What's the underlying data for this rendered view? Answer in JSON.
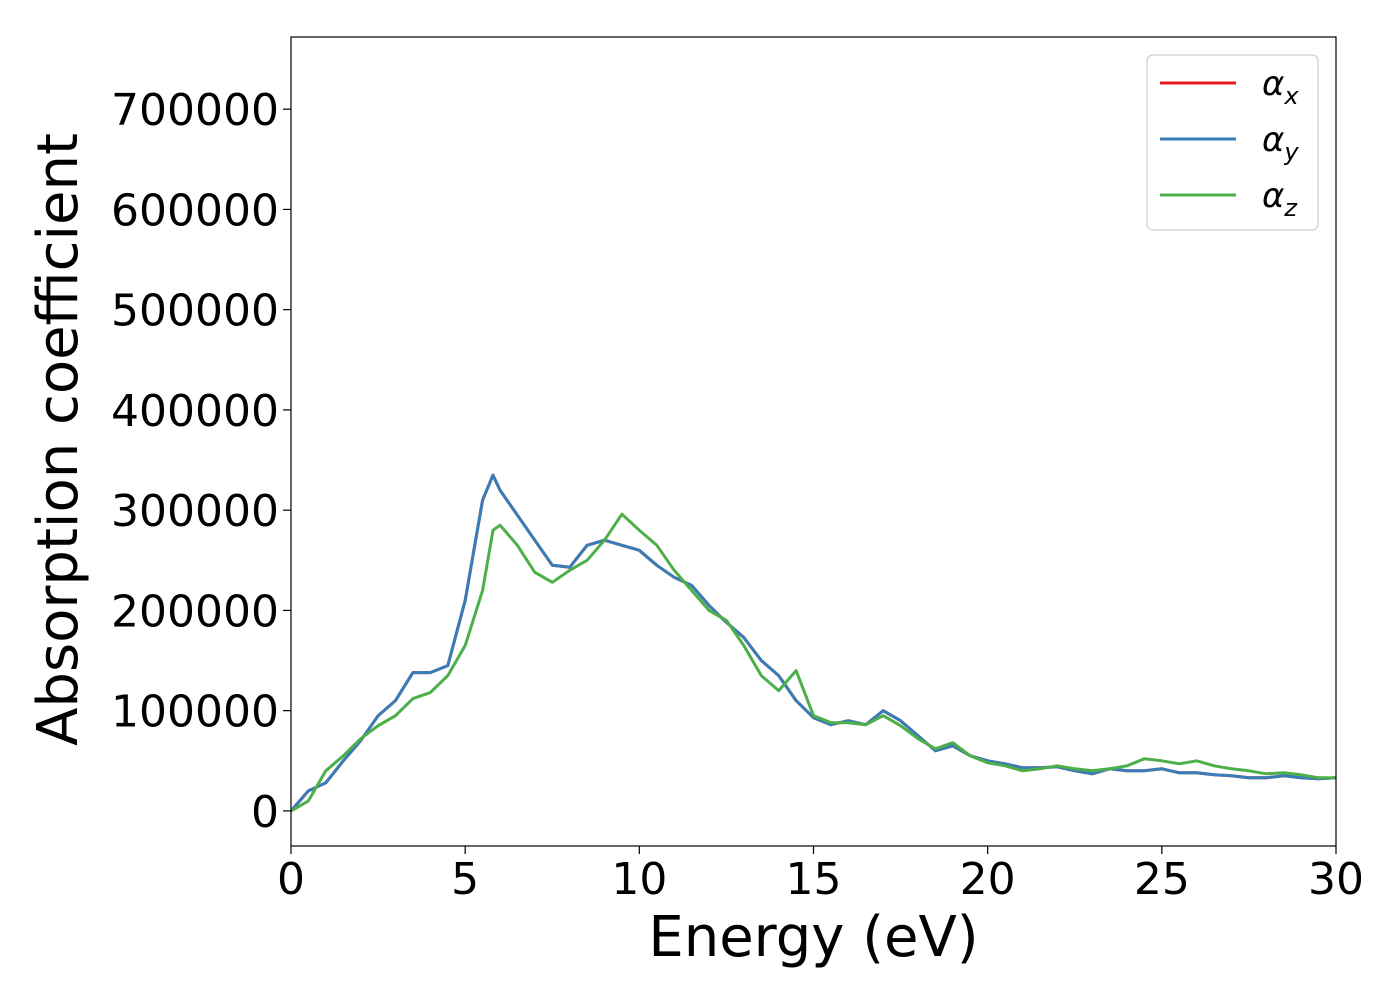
{
  "chart_data": {
    "type": "line",
    "xlabel": "Energy (eV)",
    "ylabel": "Absorption coefficient",
    "xlim": [
      0,
      30
    ],
    "ylim": [
      -35000,
      772000
    ],
    "grid": false,
    "legend_position": "top-right",
    "x_ticks": [
      "0",
      "5",
      "10",
      "15",
      "20",
      "25",
      "30"
    ],
    "y_ticks": [
      "0",
      "100000",
      "200000",
      "300000",
      "400000",
      "500000",
      "600000",
      "700000"
    ],
    "x": [
      0,
      0.5,
      1,
      1.5,
      2,
      2.5,
      3,
      3.5,
      4,
      4.5,
      5,
      5.5,
      5.8,
      6,
      6.5,
      7,
      7.5,
      8,
      8.5,
      9,
      9.5,
      10,
      10.5,
      11,
      11.5,
      12,
      12.5,
      13,
      13.5,
      14,
      14.5,
      15,
      15.5,
      16,
      16.5,
      17,
      17.5,
      18,
      18.5,
      19,
      19.5,
      20,
      20.5,
      21,
      21.5,
      22,
      22.5,
      23,
      23.5,
      24,
      24.5,
      25,
      25.5,
      26,
      26.5,
      27,
      27.5,
      28,
      28.5,
      29,
      29.5,
      30
    ],
    "series": [
      {
        "name": "α",
        "subscript": "x",
        "color": "#e41a1c",
        "values": [
          0,
          20000,
          28000,
          50000,
          70000,
          95000,
          110000,
          138000,
          138000,
          145000,
          210000,
          310000,
          335000,
          320000,
          295000,
          270000,
          245000,
          243000,
          265000,
          270000,
          265000,
          260000,
          245000,
          233000,
          225000,
          205000,
          188000,
          173000,
          150000,
          135000,
          110000,
          93000,
          86000,
          90000,
          86000,
          100000,
          90000,
          75000,
          60000,
          65000,
          55000,
          50000,
          47000,
          43000,
          43000,
          44000,
          40000,
          37000,
          42000,
          40000,
          40000,
          42000,
          38000,
          38000,
          36000,
          35000,
          33000,
          33000,
          35000,
          33000,
          32000,
          33000
        ]
      },
      {
        "name": "α",
        "subscript": "y",
        "color": "#377eb8",
        "values": [
          0,
          20000,
          28000,
          50000,
          70000,
          95000,
          110000,
          138000,
          138000,
          145000,
          210000,
          310000,
          335000,
          320000,
          295000,
          270000,
          245000,
          243000,
          265000,
          270000,
          265000,
          260000,
          245000,
          233000,
          225000,
          205000,
          188000,
          173000,
          150000,
          135000,
          110000,
          93000,
          86000,
          90000,
          86000,
          100000,
          90000,
          75000,
          60000,
          65000,
          55000,
          50000,
          47000,
          43000,
          43000,
          44000,
          40000,
          37000,
          42000,
          40000,
          40000,
          42000,
          38000,
          38000,
          36000,
          35000,
          33000,
          33000,
          35000,
          33000,
          32000,
          33000
        ]
      },
      {
        "name": "α",
        "subscript": "z",
        "color": "#4daf4a",
        "values": [
          0,
          10000,
          40000,
          55000,
          72000,
          85000,
          95000,
          112000,
          118000,
          135000,
          165000,
          220000,
          280000,
          285000,
          265000,
          238000,
          228000,
          240000,
          250000,
          270000,
          296000,
          280000,
          265000,
          240000,
          220000,
          200000,
          190000,
          165000,
          135000,
          120000,
          140000,
          95000,
          88000,
          88000,
          86000,
          95000,
          85000,
          72000,
          62000,
          68000,
          55000,
          48000,
          45000,
          40000,
          42000,
          45000,
          42000,
          40000,
          42000,
          45000,
          52000,
          50000,
          47000,
          50000,
          45000,
          42000,
          40000,
          37000,
          38000,
          36000,
          33000,
          33000
        ]
      }
    ]
  }
}
